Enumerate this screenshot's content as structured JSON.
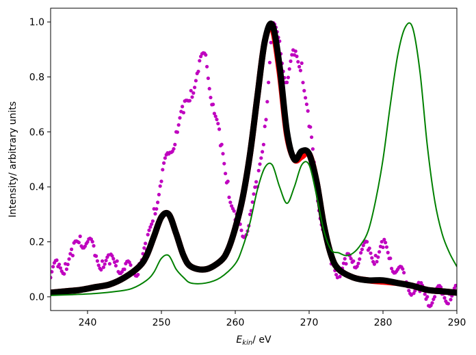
{
  "chart_data": {
    "type": "line",
    "title": "",
    "xlabel": "E_kin/ eV",
    "xlabel_main": "E",
    "xlabel_sub": "kin",
    "xlabel_rest": "/ eV",
    "ylabel": "Intensity/ arbitrary units",
    "xlim": [
      235,
      290
    ],
    "ylim": [
      -0.05,
      1.05
    ],
    "xticks": [
      240,
      250,
      260,
      270,
      280,
      290
    ],
    "yticks": [
      0.0,
      0.2,
      0.4,
      0.6,
      0.8,
      1.0
    ],
    "grid": false,
    "legend": "none",
    "series": [
      {
        "style": "scatter",
        "color": "#bf00bf",
        "x": [
          235,
          236,
          237,
          238,
          239,
          240,
          241,
          242,
          243,
          244,
          245,
          246,
          247,
          248,
          249,
          250,
          251,
          252,
          253,
          254,
          255,
          256,
          257,
          258,
          259,
          260,
          261,
          262,
          263,
          264,
          265,
          266,
          267,
          268,
          269,
          270,
          271,
          272,
          273,
          274,
          275,
          276,
          277,
          278,
          279,
          280,
          281,
          282,
          283,
          284,
          285,
          286,
          287,
          288,
          289,
          290
        ],
        "y": [
          0.07,
          0.11,
          0.12,
          0.15,
          0.22,
          0.2,
          0.15,
          0.13,
          0.12,
          0.13,
          0.1,
          0.09,
          0.12,
          0.17,
          0.32,
          0.42,
          0.52,
          0.6,
          0.67,
          0.75,
          0.82,
          0.88,
          0.7,
          0.55,
          0.42,
          0.28,
          0.22,
          0.3,
          0.4,
          0.62,
          0.97,
          0.93,
          0.78,
          0.88,
          0.85,
          0.62,
          0.4,
          0.24,
          0.12,
          0.1,
          0.12,
          0.13,
          0.16,
          0.17,
          0.15,
          0.18,
          0.14,
          0.1,
          0.05,
          0.04,
          0.02,
          0.0,
          0.0,
          0.01,
          0.01,
          0.01
        ]
      },
      {
        "style": "line",
        "color": "#ff0000",
        "width": 9,
        "x": [
          235,
          237,
          239,
          241,
          243,
          245,
          247,
          248,
          249,
          250,
          251,
          252,
          253,
          254,
          256,
          258,
          259,
          260,
          261,
          262,
          263,
          264,
          265,
          266,
          267,
          268,
          269,
          270,
          271,
          272,
          273,
          274,
          276,
          278,
          280,
          282,
          284,
          286,
          288,
          290
        ],
        "y": [
          0.015,
          0.02,
          0.025,
          0.035,
          0.045,
          0.07,
          0.11,
          0.15,
          0.22,
          0.29,
          0.3,
          0.23,
          0.15,
          0.11,
          0.1,
          0.13,
          0.17,
          0.25,
          0.36,
          0.52,
          0.73,
          0.93,
          0.98,
          0.82,
          0.59,
          0.5,
          0.51,
          0.52,
          0.42,
          0.26,
          0.15,
          0.1,
          0.07,
          0.06,
          0.055,
          0.05,
          0.04,
          0.025,
          0.02,
          0.015
        ]
      },
      {
        "style": "line",
        "color": "#000000",
        "width": 9,
        "x": [
          235,
          237,
          239,
          241,
          243,
          245,
          247,
          248,
          249,
          250,
          251,
          252,
          253,
          254,
          256,
          258,
          259,
          260,
          261,
          262,
          263,
          264,
          265,
          266,
          267,
          268,
          269,
          270,
          271,
          272,
          273,
          274,
          276,
          278,
          280,
          282,
          284,
          286,
          288,
          290
        ],
        "y": [
          0.015,
          0.02,
          0.025,
          0.035,
          0.045,
          0.07,
          0.11,
          0.15,
          0.22,
          0.29,
          0.3,
          0.23,
          0.15,
          0.11,
          0.1,
          0.13,
          0.17,
          0.25,
          0.36,
          0.52,
          0.73,
          0.93,
          0.99,
          0.84,
          0.6,
          0.5,
          0.53,
          0.52,
          0.42,
          0.26,
          0.15,
          0.1,
          0.07,
          0.06,
          0.06,
          0.05,
          0.04,
          0.025,
          0.02,
          0.015
        ]
      },
      {
        "style": "line",
        "color": "#008000",
        "width": 2,
        "x": [
          235,
          238,
          241,
          244,
          246,
          248,
          249,
          250,
          251,
          252,
          253,
          254,
          256,
          258,
          260,
          261,
          262,
          263,
          264,
          265,
          266,
          267,
          268,
          269,
          270,
          271,
          272,
          273,
          274,
          275,
          276,
          277,
          278,
          279,
          280,
          281,
          282,
          283,
          284,
          285,
          286,
          287,
          288,
          289,
          290
        ],
        "y": [
          0.005,
          0.008,
          0.012,
          0.02,
          0.03,
          0.06,
          0.09,
          0.14,
          0.15,
          0.1,
          0.07,
          0.05,
          0.05,
          0.07,
          0.12,
          0.18,
          0.27,
          0.39,
          0.47,
          0.48,
          0.4,
          0.34,
          0.4,
          0.48,
          0.48,
          0.37,
          0.24,
          0.17,
          0.16,
          0.15,
          0.16,
          0.19,
          0.24,
          0.35,
          0.5,
          0.7,
          0.88,
          0.98,
          0.98,
          0.82,
          0.55,
          0.35,
          0.23,
          0.16,
          0.11
        ]
      }
    ]
  }
}
